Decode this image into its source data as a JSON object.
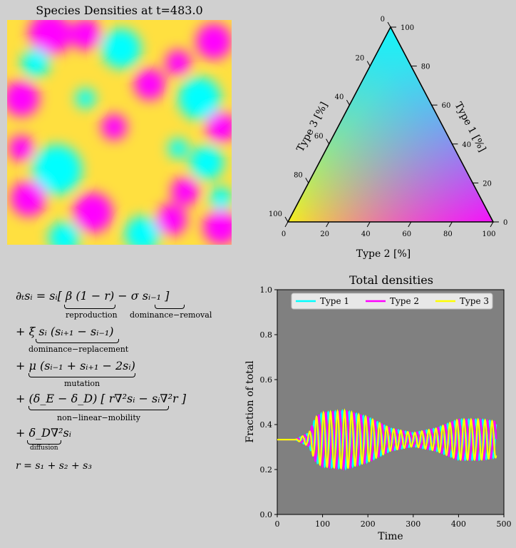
{
  "density_map": {
    "title": "Species Densities at t=483.0",
    "colors": {
      "type1": "#00ffff",
      "type2": "#ff00ff",
      "type3": "#ffff00"
    }
  },
  "ternary": {
    "left_label": "Type 3 [%]",
    "right_label": "Type 1 [%]",
    "bottom_label": "Type 2 [%]",
    "ticks": [
      "0",
      "20",
      "40",
      "60",
      "80",
      "100"
    ]
  },
  "equations": {
    "lines": [
      {
        "text": "∂ₜsᵢ = sᵢ[ β (1 − r) −   σ sᵢ₋₁     ]",
        "labels": [
          "reproduction",
          "dominance−removal"
        ]
      },
      {
        "text": "+  ξ sᵢ (sᵢ₊₁ − sᵢ₋₁)",
        "labels": [
          "dominance−replacement"
        ]
      },
      {
        "text": "+ μ (sᵢ₋₁ + sᵢ₊₁ − 2sᵢ)",
        "labels": [
          "mutation"
        ]
      },
      {
        "text": "+ (δ_E − δ_D) [ r∇²sᵢ − sᵢ∇²r ]",
        "labels": [
          "non−linear−mobility"
        ]
      },
      {
        "text": "+ δ_D∇²sᵢ",
        "labels": [
          "diffusion"
        ]
      },
      {
        "text": "r = s₁ + s₂ + s₃",
        "labels": []
      }
    ]
  },
  "chart_data": {
    "type": "line",
    "title": "Total densities",
    "xlabel": "Time",
    "ylabel": "Fraction of total",
    "xlim": [
      0,
      500
    ],
    "ylim": [
      0.0,
      1.0
    ],
    "xticks": [
      0,
      100,
      200,
      300,
      400,
      500
    ],
    "yticks": [
      "0.0",
      "0.2",
      "0.4",
      "0.6",
      "0.8",
      "1.0"
    ],
    "background": "#808080",
    "legend_position": "top",
    "series": [
      {
        "name": "Type 1",
        "color": "#00ffff",
        "phase": 0
      },
      {
        "name": "Type 2",
        "color": "#ff00ff",
        "phase": 2.094
      },
      {
        "name": "Type 3",
        "color": "#ffff00",
        "phase": 4.189
      }
    ],
    "baseline": 0.333,
    "envelope": [
      [
        0,
        0.0
      ],
      [
        40,
        0.0
      ],
      [
        70,
        0.03
      ],
      [
        85,
        0.1
      ],
      [
        100,
        0.12
      ],
      [
        150,
        0.13
      ],
      [
        200,
        0.1
      ],
      [
        250,
        0.05
      ],
      [
        300,
        0.03
      ],
      [
        350,
        0.05
      ],
      [
        400,
        0.09
      ],
      [
        450,
        0.09
      ],
      [
        483,
        0.08
      ]
    ],
    "period": 15.5,
    "t_end": 483
  }
}
